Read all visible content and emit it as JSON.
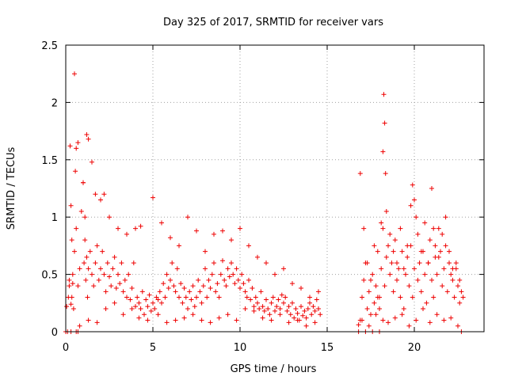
{
  "chart_data": {
    "type": "scatter",
    "title": "Day 325 of 2017, SRMTID for receiver vars",
    "xlabel": "GPS time / hours",
    "ylabel": "SRMTID / TECUs",
    "xlim": [
      0,
      24
    ],
    "ylim": [
      0,
      2.5
    ],
    "xticks": [
      "0",
      "5",
      "10",
      "15",
      "20"
    ],
    "yticks": [
      "0",
      "0.5",
      "1",
      "1.5",
      "2",
      "2.5"
    ],
    "grid": true,
    "marker": "plus",
    "color": "#ee0000",
    "series": [
      {
        "name": "SRMTID",
        "x": [
          0.05,
          0.15,
          0.2,
          0.25,
          0.3,
          0.35,
          0.4,
          0.45,
          0.5,
          0.55,
          0.6,
          0.7,
          0.8,
          0.9,
          1.0,
          1.05,
          1.1,
          1.15,
          1.2,
          1.25,
          1.3,
          1.4,
          1.5,
          1.6,
          1.7,
          1.8,
          1.9,
          2.0,
          2.1,
          2.2,
          2.3,
          2.4,
          2.5,
          2.6,
          2.7,
          2.8,
          2.9,
          3.0,
          3.1,
          3.2,
          3.3,
          3.4,
          3.5,
          3.6,
          3.7,
          3.8,
          3.9,
          4.0,
          4.1,
          4.2,
          4.3,
          4.4,
          4.5,
          4.6,
          4.7,
          4.8,
          4.9,
          5.0,
          5.1,
          5.2,
          5.3,
          5.4,
          5.5,
          5.6,
          5.7,
          5.8,
          5.9,
          6.0,
          6.1,
          6.2,
          6.3,
          6.4,
          6.5,
          6.6,
          6.7,
          6.8,
          6.9,
          7.0,
          7.1,
          7.2,
          7.3,
          7.4,
          7.5,
          7.6,
          7.7,
          7.8,
          7.9,
          8.0,
          8.1,
          8.2,
          8.3,
          8.4,
          8.5,
          8.6,
          8.7,
          8.8,
          8.9,
          9.0,
          9.1,
          9.2,
          9.3,
          9.4,
          9.5,
          9.6,
          9.7,
          9.8,
          9.9,
          10.0,
          10.1,
          10.2,
          10.3,
          10.4,
          10.5,
          10.6,
          10.7,
          10.8,
          10.9,
          11.0,
          11.1,
          11.2,
          11.3,
          11.4,
          11.5,
          11.6,
          11.7,
          11.8,
          11.9,
          12.0,
          12.1,
          12.2,
          12.3,
          12.4,
          12.5,
          12.6,
          12.7,
          12.8,
          12.9,
          13.0,
          13.1,
          13.2,
          13.3,
          13.4,
          13.5,
          13.6,
          13.7,
          13.8,
          13.9,
          14.0,
          14.1,
          14.2,
          14.3,
          14.4,
          14.5,
          14.6,
          0.3,
          0.35,
          0.5,
          0.6,
          0.7,
          1.0,
          1.1,
          1.2,
          1.3,
          1.5,
          1.7,
          2.0,
          2.2,
          2.5,
          3.0,
          3.5,
          4.0,
          4.3,
          5.0,
          5.5,
          6.0,
          6.5,
          7.0,
          7.5,
          8.0,
          8.5,
          9.0,
          9.5,
          10.0,
          10.5,
          11.0,
          11.5,
          12.0,
          12.5,
          13.0,
          13.5,
          14.0,
          14.5,
          0.2,
          0.4,
          0.8,
          1.3,
          1.8,
          2.3,
          2.8,
          3.3,
          3.8,
          4.2,
          4.7,
          5.3,
          5.8,
          6.3,
          6.8,
          7.3,
          7.8,
          8.3,
          8.8,
          9.3,
          9.8,
          10.3,
          10.8,
          11.3,
          11.8,
          12.3,
          12.8,
          13.3,
          13.8,
          14.3,
          16.8,
          16.9,
          17.0,
          17.1,
          17.2,
          17.3,
          17.4,
          17.5,
          17.6,
          17.7,
          17.8,
          17.9,
          18.0,
          18.1,
          18.2,
          18.3,
          18.4,
          18.5,
          18.6,
          18.7,
          18.8,
          18.9,
          19.0,
          19.1,
          19.2,
          19.3,
          19.4,
          19.5,
          19.6,
          19.7,
          19.8,
          19.9,
          20.0,
          20.1,
          20.2,
          20.3,
          20.4,
          20.5,
          20.6,
          20.7,
          20.8,
          20.9,
          21.0,
          21.1,
          21.2,
          21.3,
          21.4,
          21.5,
          21.6,
          21.7,
          21.8,
          21.9,
          22.0,
          22.1,
          22.2,
          22.3,
          22.4,
          22.5,
          22.6,
          22.7,
          22.8,
          16.9,
          17.1,
          17.3,
          17.5,
          17.7,
          17.9,
          18.1,
          18.2,
          18.25,
          18.3,
          18.35,
          18.4,
          18.6,
          18.8,
          19.0,
          19.2,
          19.4,
          19.6,
          19.8,
          19.9,
          20.0,
          20.2,
          20.4,
          20.6,
          20.8,
          21.0,
          21.1,
          21.2,
          21.4,
          21.6,
          21.8,
          22.0,
          22.2,
          22.4,
          22.6,
          17.0,
          17.4,
          17.8,
          18.0,
          18.2,
          18.5,
          18.9,
          19.3,
          19.7,
          20.1,
          20.5,
          20.9,
          21.3,
          21.7,
          22.1,
          22.5,
          0.0,
          0.1,
          0.3,
          0.6,
          0.7,
          16.8,
          17.2,
          17.6,
          18.0,
          22.7
        ],
        "y": [
          0.22,
          0.3,
          0.45,
          1.62,
          1.1,
          0.8,
          0.5,
          0.2,
          0.7,
          1.4,
          0.9,
          0.4,
          0.55,
          1.05,
          1.3,
          0.6,
          0.8,
          0.45,
          0.65,
          0.3,
          0.55,
          0.7,
          0.5,
          0.4,
          0.6,
          0.75,
          0.45,
          0.55,
          0.7,
          0.5,
          0.35,
          0.6,
          0.48,
          0.4,
          0.55,
          0.65,
          0.38,
          0.5,
          0.42,
          0.6,
          0.35,
          0.45,
          0.3,
          0.5,
          0.28,
          0.38,
          0.6,
          0.22,
          0.3,
          0.25,
          0.2,
          0.35,
          0.15,
          0.28,
          0.22,
          0.32,
          0.18,
          0.25,
          0.2,
          0.3,
          0.28,
          0.35,
          0.25,
          0.42,
          0.3,
          0.5,
          0.38,
          0.45,
          0.6,
          0.4,
          0.35,
          0.55,
          0.3,
          0.42,
          0.25,
          0.38,
          0.3,
          0.2,
          0.35,
          0.28,
          0.4,
          0.22,
          0.3,
          0.45,
          0.35,
          0.25,
          0.4,
          0.55,
          0.3,
          0.45,
          0.38,
          0.5,
          0.6,
          0.35,
          0.42,
          0.3,
          0.5,
          0.62,
          0.45,
          0.4,
          0.55,
          0.48,
          0.6,
          0.5,
          0.42,
          0.55,
          0.45,
          0.38,
          0.5,
          0.42,
          0.35,
          0.3,
          0.45,
          0.28,
          0.38,
          0.22,
          0.3,
          0.25,
          0.2,
          0.35,
          0.22,
          0.18,
          0.28,
          0.2,
          0.15,
          0.25,
          0.3,
          0.18,
          0.22,
          0.28,
          0.2,
          0.32,
          0.25,
          0.3,
          0.18,
          0.22,
          0.15,
          0.25,
          0.12,
          0.2,
          0.16,
          0.1,
          0.22,
          0.14,
          0.18,
          0.12,
          0.2,
          0.25,
          0.15,
          0.22,
          0.18,
          0.28,
          0.2,
          0.15,
          0.24,
          0.3,
          2.25,
          1.6,
          1.65,
          1.3,
          1.0,
          1.72,
          1.68,
          1.48,
          1.2,
          1.15,
          1.2,
          1.0,
          0.9,
          0.85,
          0.9,
          0.92,
          1.17,
          0.95,
          0.82,
          0.75,
          1.0,
          0.88,
          0.7,
          0.85,
          0.88,
          0.8,
          0.9,
          0.75,
          0.65,
          0.6,
          0.5,
          0.55,
          0.42,
          0.38,
          0.3,
          0.35,
          0.4,
          0.42,
          0.05,
          0.1,
          0.08,
          0.2,
          0.25,
          0.15,
          0.2,
          0.12,
          0.1,
          0.15,
          0.08,
          0.1,
          0.12,
          0.15,
          0.1,
          0.08,
          0.12,
          0.15,
          0.1,
          0.2,
          0.18,
          0.12,
          0.1,
          0.15,
          0.08,
          0.1,
          0.05,
          0.08,
          0.06,
          0.1,
          0.3,
          0.45,
          0.6,
          0.2,
          0.35,
          0.15,
          0.5,
          0.25,
          0.4,
          0.7,
          0.3,
          0.55,
          0.9,
          0.4,
          0.65,
          0.75,
          0.5,
          0.6,
          0.35,
          0.8,
          0.45,
          0.55,
          0.3,
          0.7,
          0.2,
          0.5,
          0.65,
          0.4,
          0.75,
          0.3,
          0.55,
          1.0,
          0.45,
          0.6,
          0.35,
          0.7,
          0.5,
          0.25,
          0.6,
          0.8,
          0.45,
          0.3,
          0.65,
          0.5,
          0.9,
          0.7,
          0.4,
          0.55,
          0.75,
          0.35,
          0.6,
          0.5,
          0.45,
          0.3,
          0.55,
          0.4,
          0.25,
          0.35,
          0.3,
          1.38,
          0.9,
          0.6,
          0.45,
          0.75,
          0.3,
          0.95,
          1.57,
          2.07,
          1.82,
          1.38,
          1.05,
          0.85,
          0.7,
          0.6,
          0.9,
          0.55,
          0.75,
          1.1,
          1.28,
          1.15,
          0.85,
          0.7,
          0.95,
          0.6,
          1.25,
          0.9,
          0.75,
          0.65,
          0.85,
          1.0,
          0.7,
          0.55,
          0.6,
          0.45,
          0.1,
          0.05,
          0.15,
          0.2,
          0.1,
          0.08,
          0.12,
          0.15,
          0.05,
          0.1,
          0.2,
          0.08,
          0.15,
          0.1,
          0.12,
          0.05,
          0.0,
          0.0,
          0.0,
          0.0,
          0.0,
          0.0,
          0.0,
          0.0,
          0.0,
          0.0
        ]
      }
    ]
  }
}
